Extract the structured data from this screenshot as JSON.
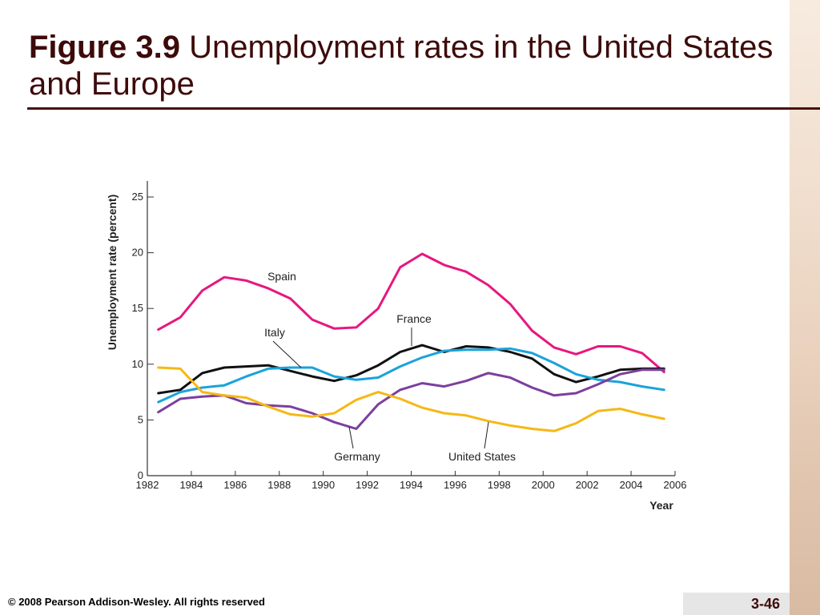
{
  "slide": {
    "title_prefix": "Figure 3.9",
    "title_rest": " Unemployment rates in the United States and Europe",
    "footer": "© 2008 Pearson Addison-Wesley. All rights reserved",
    "page_number": "3-46"
  },
  "chart_data": {
    "type": "line",
    "title": "",
    "xlabel": "Year",
    "ylabel": "Unemployment rate (percent)",
    "xlim": [
      1982,
      2006
    ],
    "ylim": [
      0,
      25
    ],
    "xticks": [
      1982,
      1984,
      1986,
      1988,
      1990,
      1992,
      1994,
      1996,
      1998,
      2000,
      2002,
      2004,
      2006
    ],
    "yticks": [
      0,
      5,
      10,
      15,
      20,
      25
    ],
    "grid": false,
    "x": [
      1982.5,
      1983.5,
      1984.5,
      1985.5,
      1986.5,
      1987.5,
      1988.5,
      1989.5,
      1990.5,
      1991.5,
      1992.5,
      1993.5,
      1994.5,
      1995.5,
      1996.5,
      1997.5,
      1998.5,
      1999.5,
      2000.5,
      2001.5,
      2002.5,
      2003.5,
      2004.5,
      2005.5
    ],
    "series": [
      {
        "name": "Spain",
        "color": "#e6187f",
        "values": [
          13.1,
          14.2,
          16.6,
          17.8,
          17.5,
          16.8,
          15.9,
          14.0,
          13.2,
          13.3,
          15.0,
          18.7,
          19.9,
          18.9,
          18.3,
          17.1,
          15.4,
          13.0,
          11.5,
          10.9,
          11.6,
          11.6,
          11.0,
          9.3
        ]
      },
      {
        "name": "France",
        "color": "#111111",
        "values": [
          7.4,
          7.7,
          9.2,
          9.7,
          9.8,
          9.9,
          9.4,
          8.9,
          8.5,
          9.0,
          9.9,
          11.1,
          11.7,
          11.1,
          11.6,
          11.5,
          11.1,
          10.5,
          9.1,
          8.4,
          8.9,
          9.5,
          9.6,
          9.6
        ]
      },
      {
        "name": "Italy",
        "color": "#1aa3db",
        "values": [
          6.6,
          7.5,
          7.9,
          8.1,
          8.9,
          9.6,
          9.7,
          9.7,
          8.9,
          8.6,
          8.8,
          9.8,
          10.6,
          11.2,
          11.3,
          11.3,
          11.4,
          11.0,
          10.1,
          9.1,
          8.6,
          8.4,
          8.0,
          7.7
        ]
      },
      {
        "name": "Germany",
        "color": "#7b3f9e",
        "values": [
          5.7,
          6.9,
          7.1,
          7.2,
          6.5,
          6.3,
          6.2,
          5.6,
          4.8,
          4.2,
          6.4,
          7.7,
          8.3,
          8.0,
          8.5,
          9.2,
          8.8,
          7.9,
          7.2,
          7.4,
          8.2,
          9.1,
          9.5,
          9.5
        ]
      },
      {
        "name": "United States",
        "color": "#f5b815",
        "values": [
          9.7,
          9.6,
          7.5,
          7.2,
          7.0,
          6.2,
          5.5,
          5.3,
          5.6,
          6.8,
          7.5,
          6.9,
          6.1,
          5.6,
          5.4,
          4.9,
          4.5,
          4.2,
          4.0,
          4.7,
          5.8,
          6.0,
          5.5,
          5.1
        ]
      }
    ],
    "annotations": [
      {
        "text": "Spain",
        "series": "Spain"
      },
      {
        "text": "France",
        "series": "France"
      },
      {
        "text": "Italy",
        "series": "Italy"
      },
      {
        "text": "Germany",
        "series": "Germany"
      },
      {
        "text": "United States",
        "series": "United States"
      }
    ]
  }
}
